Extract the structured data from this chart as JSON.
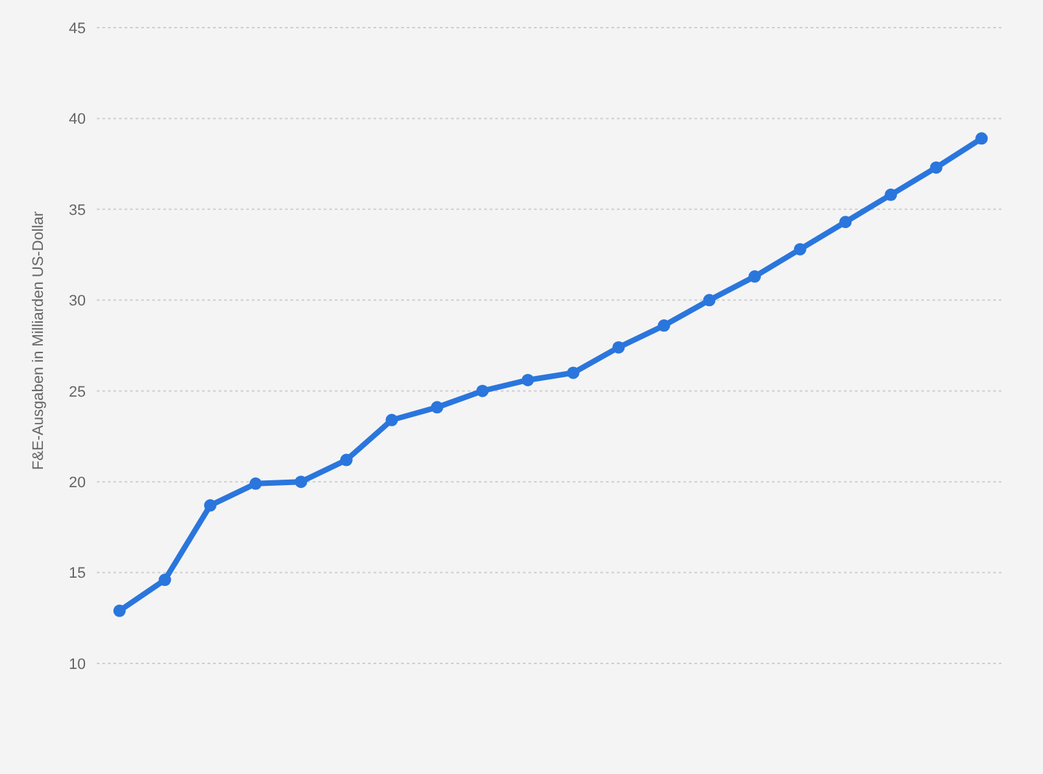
{
  "chart_data": {
    "type": "line",
    "ylabel": "F&E-Ausgaben in Milliarden US-Dollar",
    "categories": [
      null,
      null,
      null,
      null,
      null,
      null,
      null,
      null,
      null,
      null,
      null,
      null,
      null,
      null,
      null,
      null,
      null,
      null,
      null,
      null
    ],
    "series": [
      {
        "color": "#2a76dd",
        "values": [
          12.9,
          14.6,
          18.7,
          19.9,
          20.0,
          21.2,
          23.4,
          24.1,
          25.0,
          25.6,
          26.0,
          27.4,
          28.6,
          30.0,
          31.3,
          32.8,
          34.3,
          35.8,
          37.3,
          38.9
        ]
      }
    ],
    "ylim": [
      10,
      45
    ],
    "yticks": [
      10,
      15,
      20,
      25,
      30,
      35,
      40,
      45
    ],
    "grid": "y",
    "legend": false,
    "tick_labels": "y",
    "marker": "circle",
    "line_style": "solid"
  }
}
